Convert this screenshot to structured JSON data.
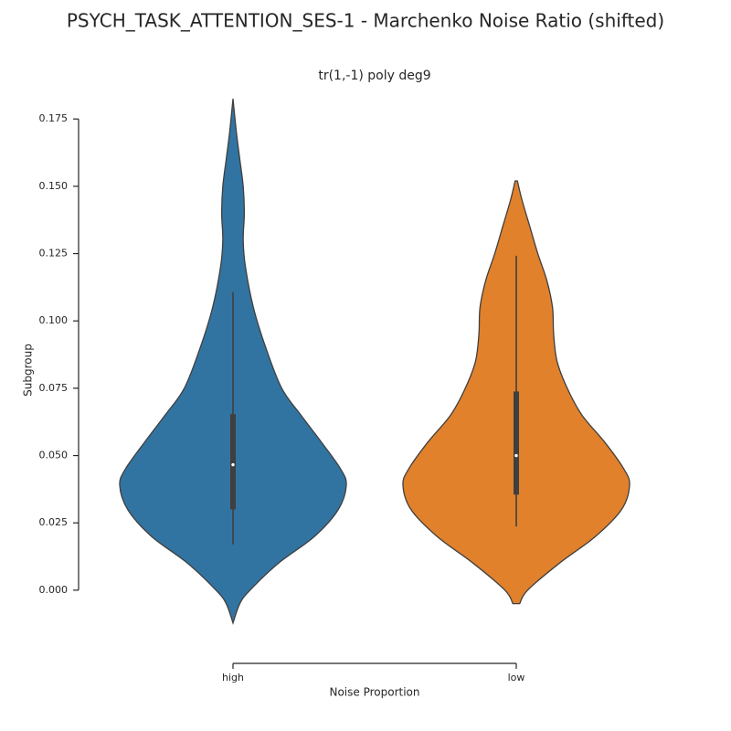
{
  "chart_data": {
    "type": "violin",
    "title": "PSYCH_TASK_ATTENTION_SES-1 - Marchenko Noise Ratio (shifted)",
    "subtitle": "tr(1,-1) poly deg9",
    "y_label": "Subgroup",
    "x_label": "Noise Proportion",
    "categories": [
      "high",
      "low"
    ],
    "ylim": [
      -0.0265,
      0.19
    ],
    "yticks": [
      {
        "value": 0,
        "label": "0.000"
      },
      {
        "value": 0.025,
        "label": "0.025"
      },
      {
        "value": 0.05,
        "label": "0.050"
      },
      {
        "value": 0.075,
        "label": "0.075"
      },
      {
        "value": 0.1,
        "label": "0.100"
      },
      {
        "value": 0.125,
        "label": "0.125"
      },
      {
        "value": 0.15,
        "label": "0.150"
      },
      {
        "value": 0.175,
        "label": "0.175"
      }
    ],
    "violins": [
      {
        "color": "#3274a1",
        "y": [
          -0.0122,
          -0.005,
          0.0,
          0.01,
          0.02,
          0.03,
          0.039,
          0.045,
          0.055,
          0.065,
          0.075,
          0.09,
          0.105,
          0.12,
          0.13,
          0.14,
          0.15,
          0.16,
          0.17,
          0.1825
        ],
        "width": [
          0,
          0.06,
          0.15,
          0.4,
          0.72,
          0.93,
          1.0,
          0.95,
          0.78,
          0.6,
          0.43,
          0.29,
          0.18,
          0.11,
          0.09,
          0.1,
          0.09,
          0.06,
          0.03,
          0
        ],
        "whislo": 0.017,
        "q1": 0.03,
        "median": 0.0466,
        "q3": 0.0654,
        "whishi": 0.1107
      },
      {
        "color": "#e1812c",
        "y": [
          -0.005,
          0.0,
          0.01,
          0.02,
          0.03,
          0.039,
          0.045,
          0.055,
          0.065,
          0.075,
          0.085,
          0.095,
          0.105,
          0.115,
          0.125,
          0.135,
          0.145,
          0.152
        ],
        "width": [
          0.03,
          0.1,
          0.38,
          0.7,
          0.93,
          1.0,
          0.95,
          0.78,
          0.58,
          0.45,
          0.36,
          0.33,
          0.32,
          0.27,
          0.19,
          0.12,
          0.05,
          0.01
        ],
        "whislo": 0.0237,
        "q1": 0.0355,
        "median": 0.05,
        "q3": 0.0738,
        "whishi": 0.1242
      }
    ]
  }
}
